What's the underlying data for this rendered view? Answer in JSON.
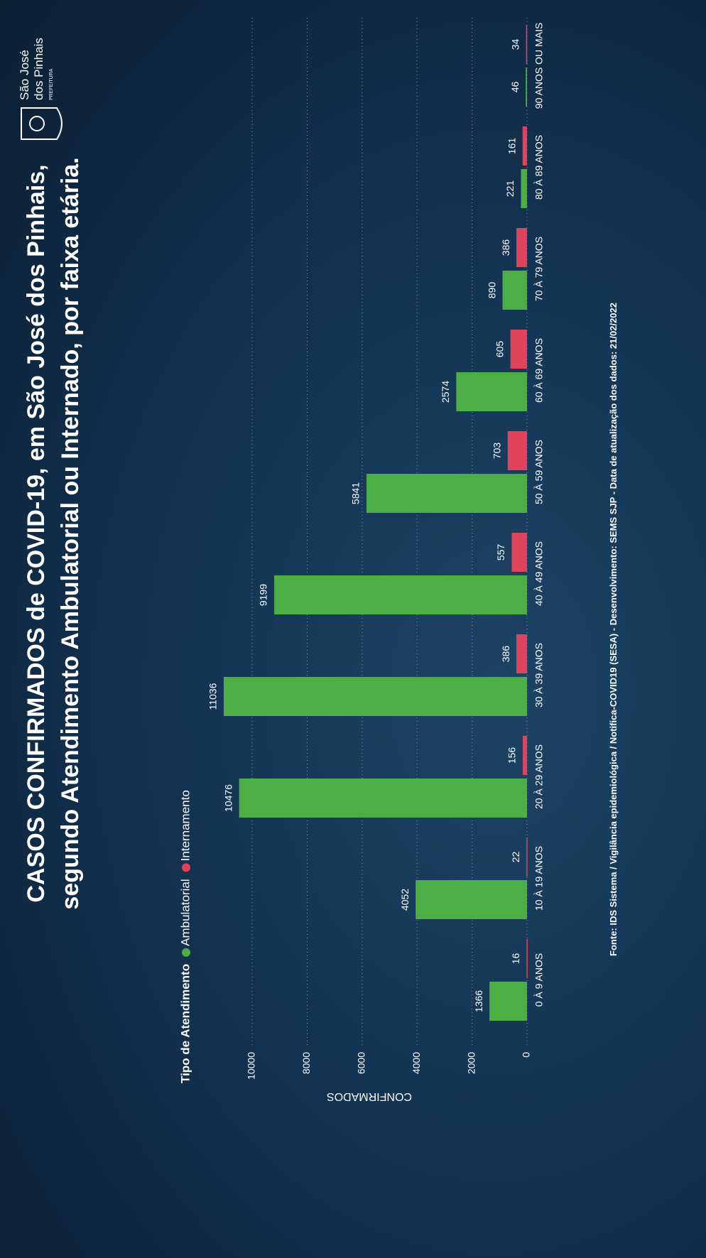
{
  "header": {
    "logo_lines": [
      "São José",
      "dos Pinhais",
      "PREFEITURA"
    ]
  },
  "chart_data": {
    "type": "bar",
    "title": "CASOS CONFIRMADOS de COVID-19, em São José dos Pinhais,",
    "subtitle": "segundo Atendimento Ambulatorial ou Internado, por faixa etária.",
    "legend_title": "Tipo de Atendimento",
    "y_label": "CONFIRMADOS",
    "categories": [
      "0 À 9 ANOS",
      "10 À 19 ANOS",
      "20 À 29 ANOS",
      "30 À 39 ANOS",
      "40 À 49 ANOS",
      "50 À 59 ANOS",
      "60 À 69 ANOS",
      "70 À 79 ANOS",
      "80 À 89 ANOS",
      "90 ANOS OU MAIS"
    ],
    "series": [
      {
        "name": "Ambulatorial",
        "color": "#4caf45",
        "values": [
          1366,
          4052,
          10476,
          11036,
          9199,
          5841,
          2574,
          890,
          221,
          46
        ]
      },
      {
        "name": "Internamento",
        "color": "#e0435c",
        "values": [
          16,
          22,
          156,
          386,
          557,
          703,
          605,
          386,
          161,
          34
        ]
      }
    ],
    "ylim": [
      0,
      11500
    ],
    "yticks": [
      0,
      2000,
      4000,
      6000,
      8000,
      10000
    ],
    "grid": true,
    "source": "Fonte: IDS Sistema / Vigilância epidemiológica / Notifica-COVID19 (SESA) - Desenvolvimento: SEMS SJP - Data de atualização dos dados: 21/02/2022"
  }
}
